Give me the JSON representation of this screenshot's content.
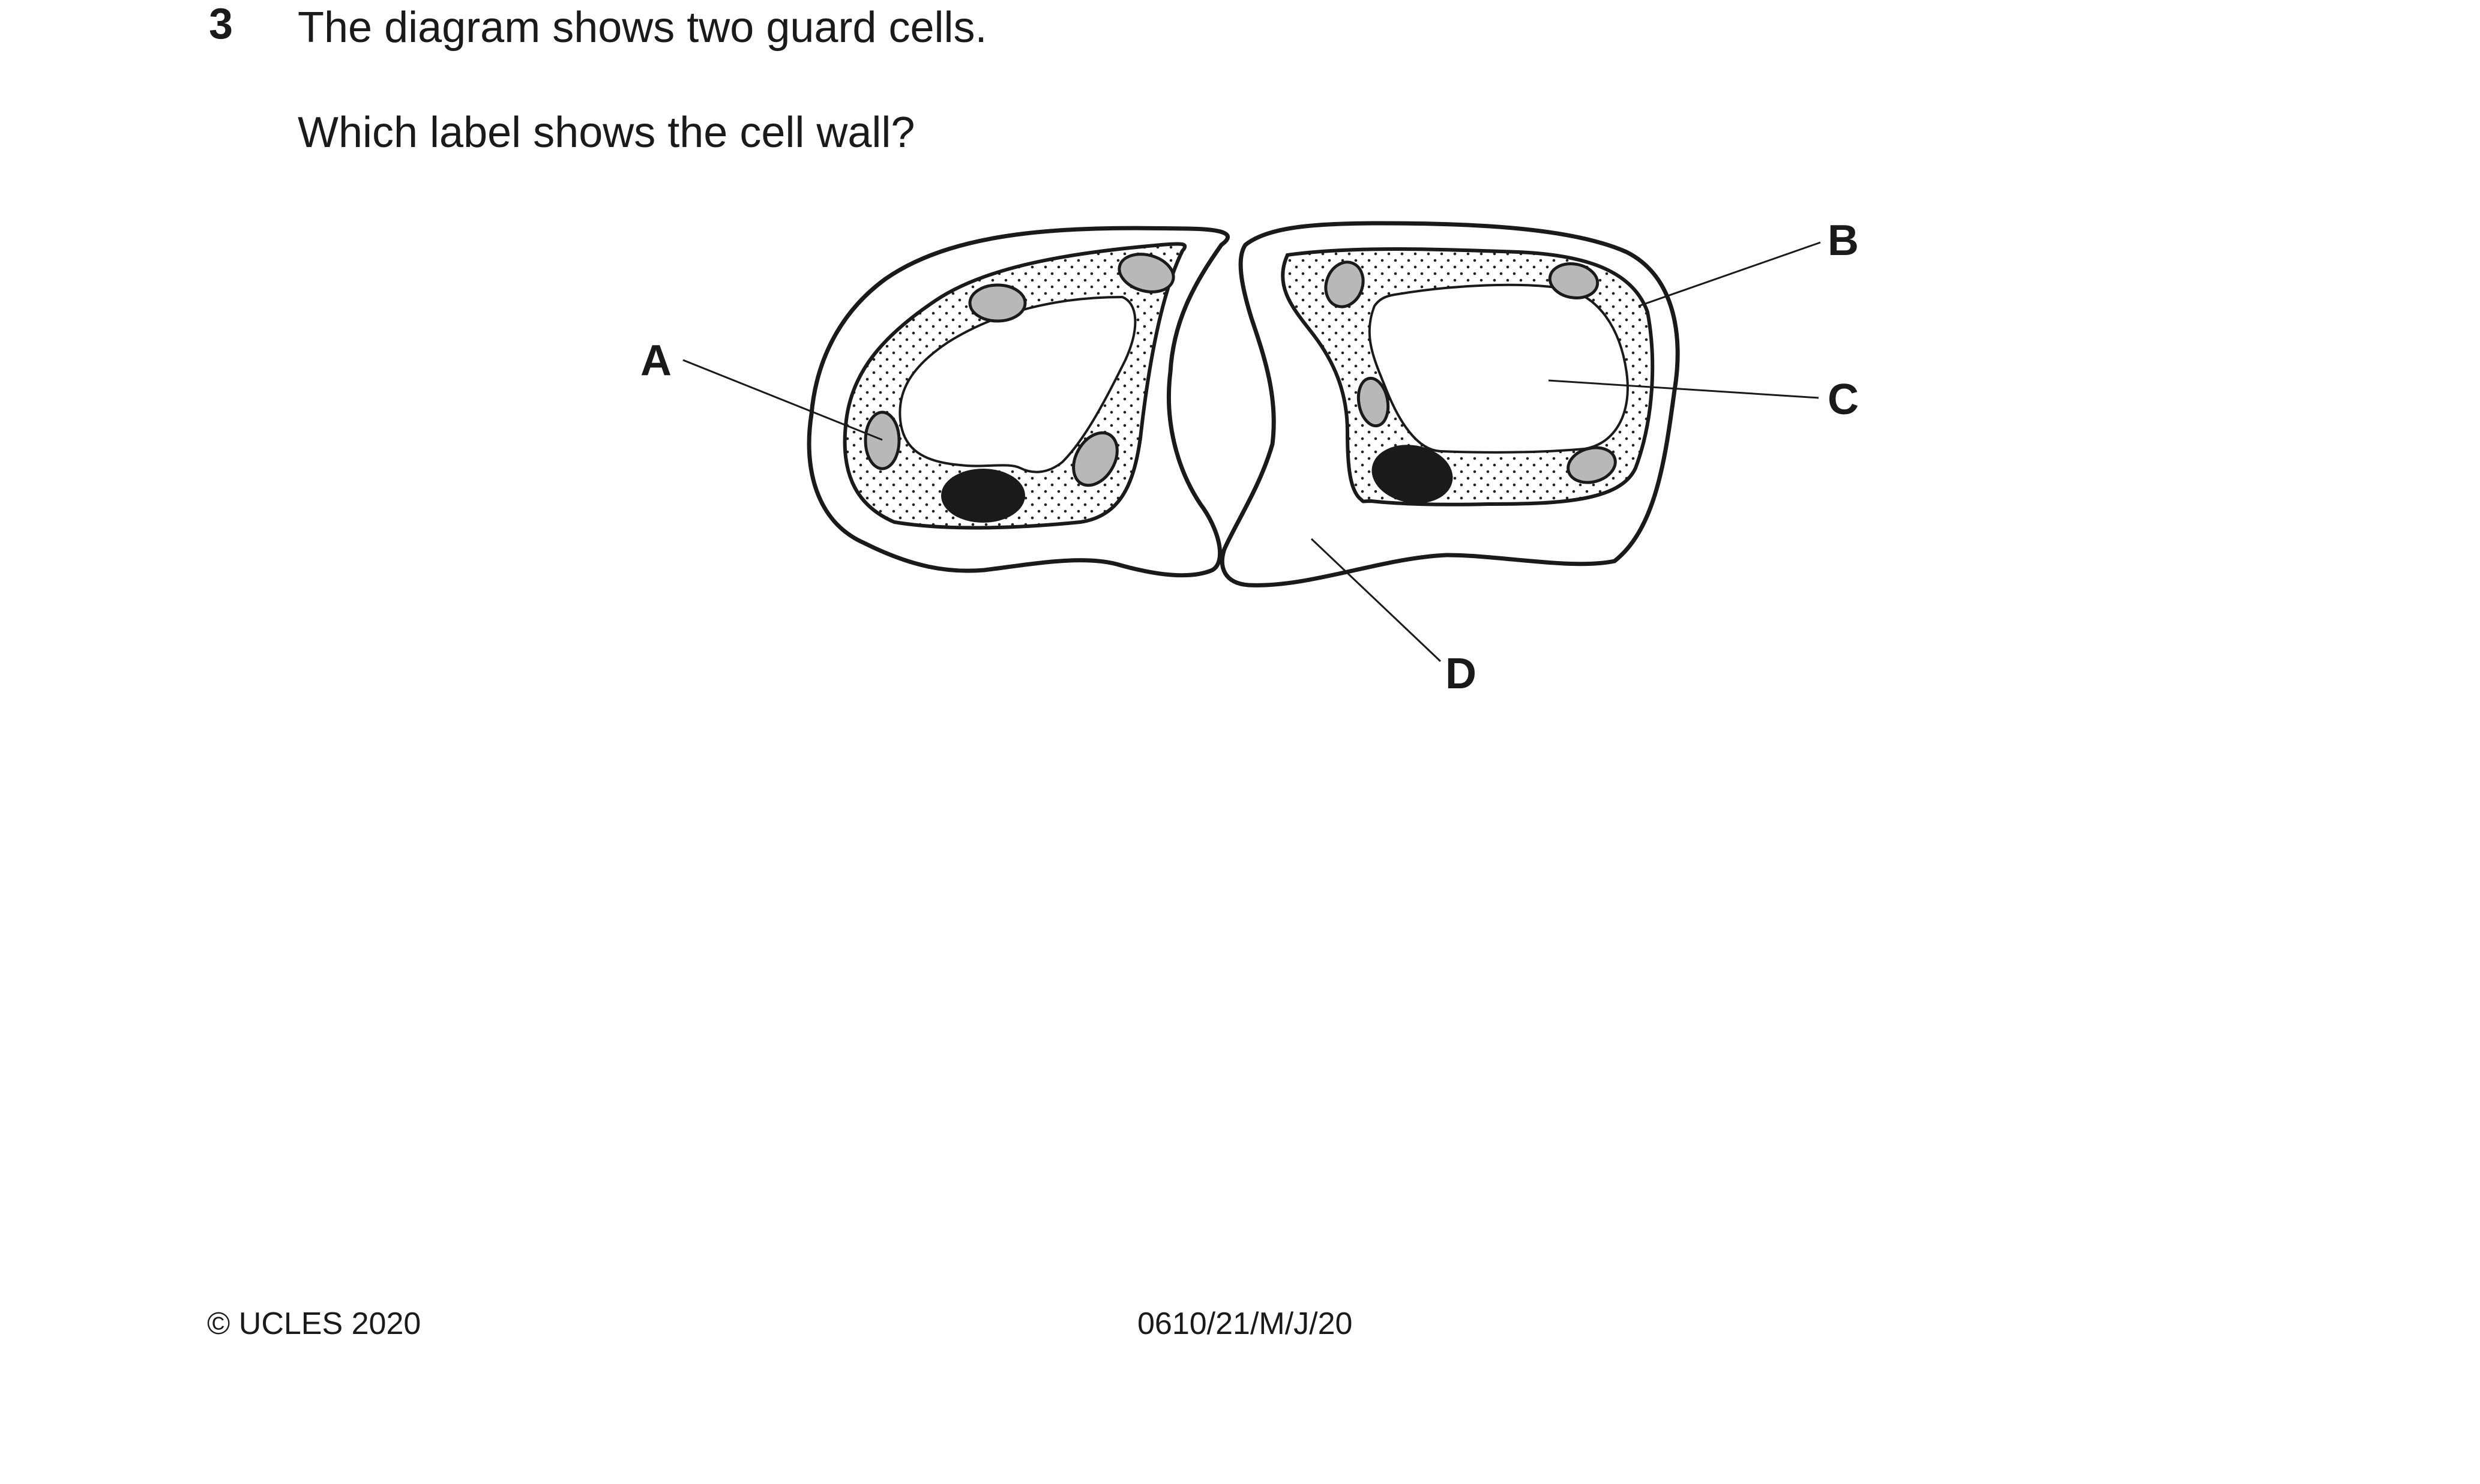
{
  "question": {
    "number": "3",
    "stem": "The diagram shows two guard cells.",
    "prompt": "Which label shows the cell wall?"
  },
  "diagram": {
    "labels": {
      "a": "A",
      "b": "B",
      "c": "C",
      "d": "D"
    }
  },
  "footer": {
    "copyright": "© UCLES 2020",
    "paper_code": "0610/21/M/J/20"
  }
}
